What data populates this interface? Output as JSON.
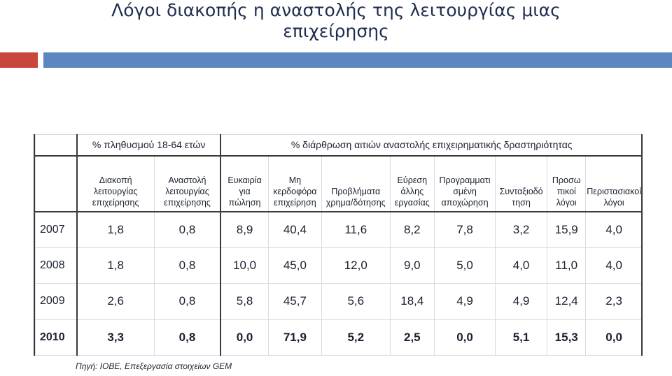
{
  "slide": {
    "title_line1": "Λόγοι διακοπής η αναστολής της λειτουργίας μιας",
    "title_line2": "επιχείρησης",
    "accent_red": "#c9463d",
    "accent_blue": "#5b86c0"
  },
  "table": {
    "group_left": "% πληθυσμού 18-64 ετών",
    "group_right": "% διάρθρωση αιτιών αναστολής επιχειρηματικής δραστηριότητας",
    "columns": [
      [
        "Διακοπή",
        "λειτουργίας",
        "επιχείρησης"
      ],
      [
        "Αναστολή",
        "λειτουργίας",
        "επιχείρησης"
      ],
      [
        "Ευκαιρία",
        "για",
        "πώληση"
      ],
      [
        "Μη",
        "κερδοφόρα",
        "επιχείρηση"
      ],
      [
        "Προβλήματα",
        "χρημα/δότησης"
      ],
      [
        "Εύρεση",
        "άλλης",
        "εργασίας"
      ],
      [
        "Προγραμματι",
        "σμένη",
        "αποχώρηση"
      ],
      [
        "Συνταξιοδό",
        "τηση"
      ],
      [
        "Προσω",
        "πικοί",
        "λόγοι"
      ],
      [
        "Περιστασιακοί",
        "λόγοι"
      ]
    ],
    "rows": [
      {
        "year": "2007",
        "values": [
          "1,8",
          "0,8",
          "8,9",
          "40,4",
          "11,6",
          "8,2",
          "7,8",
          "3,2",
          "15,9",
          "4,0"
        ]
      },
      {
        "year": "2008",
        "values": [
          "1,8",
          "0,8",
          "10,0",
          "45,0",
          "12,0",
          "9,0",
          "5,0",
          "4,0",
          "11,0",
          "4,0"
        ]
      },
      {
        "year": "2009",
        "values": [
          "2,6",
          "0,8",
          "5,8",
          "45,7",
          "5,6",
          "18,4",
          "4,9",
          "4,9",
          "12,4",
          "2,3"
        ]
      },
      {
        "year": "2010",
        "values": [
          "3,3",
          "0,8",
          "0,0",
          "71,9",
          "5,2",
          "2,5",
          "0,0",
          "5,1",
          "15,3",
          "0,0"
        ]
      }
    ],
    "source": "Πηγή: ΙΟΒΕ, Επεξεργασία στοιχείων GEM"
  }
}
